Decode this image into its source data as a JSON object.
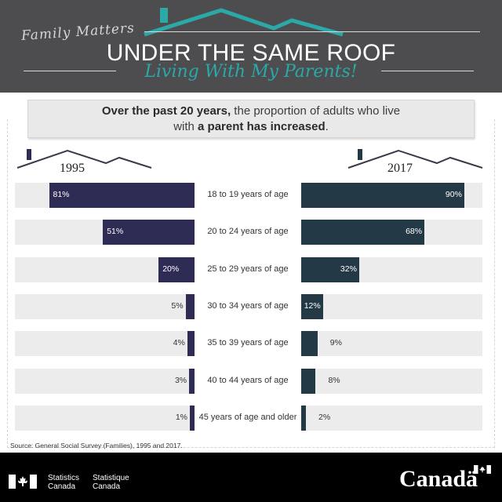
{
  "header": {
    "series_label": "Family Matters",
    "title": "UNDER THE SAME ROOF",
    "subtitle": "Living With My Parents!"
  },
  "headline": {
    "part1": "Over the past 20 years,",
    "part2": " the proportion of adults who live",
    "part3": "with ",
    "part4": "a parent has increased",
    "part5": "."
  },
  "colors": {
    "header_bg": "#4d4d4f",
    "accent_teal": "#2aa9a7",
    "bar_1995": "#2e2c55",
    "bar_2017": "#243946",
    "track": "#ececec"
  },
  "chart_data": {
    "type": "bar",
    "orientation": "horizontal-butterfly",
    "categories": [
      "18 to 19 years of age",
      "20 to 24 years of age",
      "25 to 29 years of age",
      "30 to 34 years of age",
      "35 to 39 years of age",
      "40 to 44 years of age",
      "45 years of age and older"
    ],
    "series": [
      {
        "name": "1995",
        "values": [
          81,
          51,
          20,
          5,
          4,
          3,
          1
        ],
        "labels": [
          "81%",
          "51%",
          "20%",
          "5%",
          "4%",
          "3%",
          "1%"
        ]
      },
      {
        "name": "2017",
        "values": [
          90,
          68,
          32,
          12,
          9,
          8,
          2
        ],
        "labels": [
          "90%",
          "68%",
          "32%",
          "12%",
          "9%",
          "8%",
          "2%"
        ]
      }
    ],
    "value_axis_range": [
      0,
      100
    ]
  },
  "source": "Source: General Social Survey (Families), 1995 and 2017.",
  "footer": {
    "agency_en_1": "Statistics",
    "agency_en_2": "Canada",
    "agency_fr_1": "Statistique",
    "agency_fr_2": "Canada",
    "wordmark": "Canadä"
  },
  "icons": [
    "house-roof-icon",
    "canada-flag-icon"
  ]
}
